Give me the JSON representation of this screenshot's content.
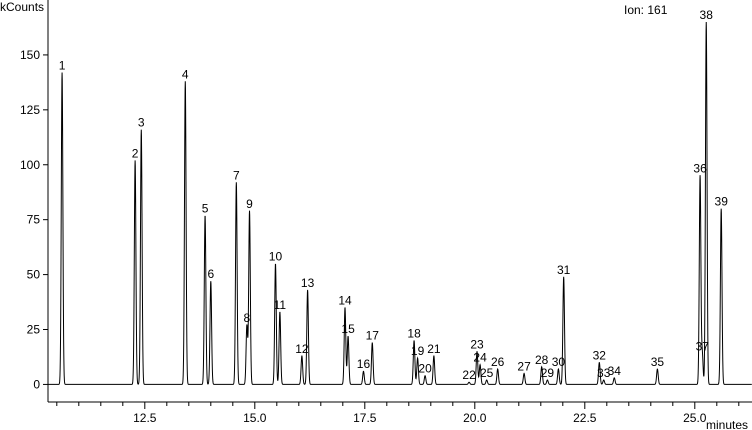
{
  "chart_data": {
    "type": "line",
    "ylabel": "kCounts",
    "xlabel": "minutes",
    "annotation": "Ion: 161",
    "xlim": [
      10.3,
      26.3
    ],
    "ylim": [
      -8,
      175
    ],
    "x_ticks": [
      12.5,
      15.0,
      17.5,
      20.0,
      22.5,
      25.0
    ],
    "x_tick_labels": [
      "12.5",
      "15.0",
      "17.5",
      "20.0",
      "22.5",
      "25.0"
    ],
    "y_ticks": [
      0,
      25,
      50,
      75,
      100,
      125,
      150
    ],
    "y_tick_labels": [
      "0",
      "25",
      "50",
      "75",
      "100",
      "125",
      "150"
    ],
    "grid": false,
    "baseline": 0,
    "peaks": [
      {
        "label": "1",
        "x": 10.62,
        "y": 142
      },
      {
        "label": "2",
        "x": 12.28,
        "y": 102
      },
      {
        "label": "3",
        "x": 12.42,
        "y": 116
      },
      {
        "label": "4",
        "x": 13.42,
        "y": 138
      },
      {
        "label": "5",
        "x": 13.87,
        "y": 77
      },
      {
        "label": "6",
        "x": 14.0,
        "y": 47
      },
      {
        "label": "7",
        "x": 14.58,
        "y": 92
      },
      {
        "label": "8",
        "x": 14.82,
        "y": 27
      },
      {
        "label": "9",
        "x": 14.88,
        "y": 79
      },
      {
        "label": "10",
        "x": 15.47,
        "y": 55
      },
      {
        "label": "11",
        "x": 15.57,
        "y": 33
      },
      {
        "label": "12",
        "x": 16.07,
        "y": 13
      },
      {
        "label": "13",
        "x": 16.2,
        "y": 43
      },
      {
        "label": "14",
        "x": 17.05,
        "y": 35
      },
      {
        "label": "15",
        "x": 17.12,
        "y": 22
      },
      {
        "label": "16",
        "x": 17.47,
        "y": 6
      },
      {
        "label": "17",
        "x": 17.67,
        "y": 19
      },
      {
        "label": "18",
        "x": 18.62,
        "y": 20
      },
      {
        "label": "19",
        "x": 18.7,
        "y": 12
      },
      {
        "label": "20",
        "x": 18.87,
        "y": 4
      },
      {
        "label": "21",
        "x": 19.07,
        "y": 13
      },
      {
        "label": "22",
        "x": 19.87,
        "y": 1
      },
      {
        "label": "23",
        "x": 20.05,
        "y": 15
      },
      {
        "label": "24",
        "x": 20.12,
        "y": 9
      },
      {
        "label": "25",
        "x": 20.27,
        "y": 2
      },
      {
        "label": "26",
        "x": 20.52,
        "y": 7
      },
      {
        "label": "27",
        "x": 21.12,
        "y": 5
      },
      {
        "label": "28",
        "x": 21.52,
        "y": 8
      },
      {
        "label": "29",
        "x": 21.65,
        "y": 2
      },
      {
        "label": "30",
        "x": 21.9,
        "y": 7
      },
      {
        "label": "31",
        "x": 22.02,
        "y": 49
      },
      {
        "label": "32",
        "x": 22.83,
        "y": 10
      },
      {
        "label": "33",
        "x": 22.93,
        "y": 2
      },
      {
        "label": "34",
        "x": 23.17,
        "y": 3
      },
      {
        "label": "35",
        "x": 24.15,
        "y": 7
      },
      {
        "label": "36",
        "x": 25.12,
        "y": 95
      },
      {
        "label": "37",
        "x": 25.17,
        "y": 14
      },
      {
        "label": "38",
        "x": 25.26,
        "y": 165
      },
      {
        "label": "39",
        "x": 25.6,
        "y": 80
      }
    ]
  }
}
